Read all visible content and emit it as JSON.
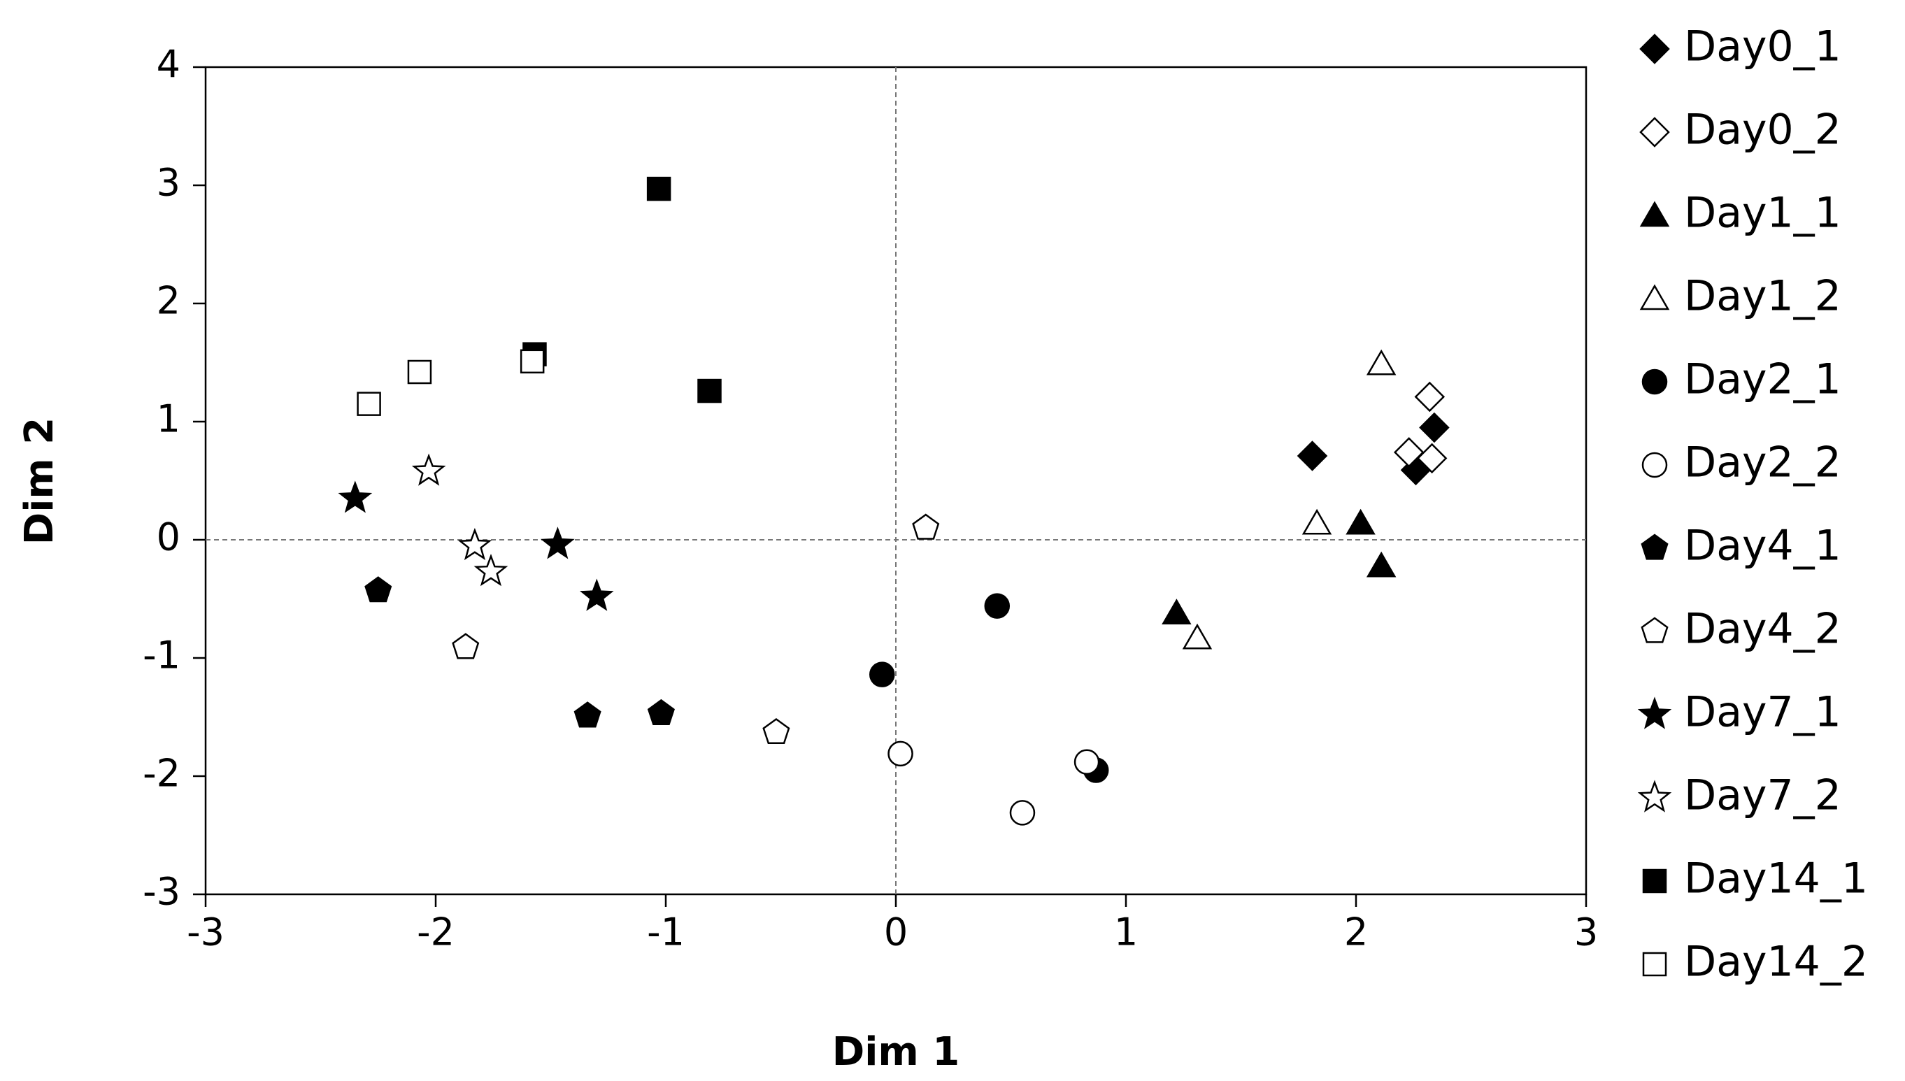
{
  "chart_data": {
    "type": "scatter",
    "x_label": "Dim 1",
    "y_label": "Dim 2",
    "xlim": [
      -3,
      3
    ],
    "ylim": [
      -3,
      4
    ],
    "xticks": [
      -3,
      -2,
      -1,
      0,
      1,
      2,
      3
    ],
    "yticks": [
      -3,
      -2,
      -1,
      0,
      1,
      2,
      3,
      4
    ],
    "zero_lines": true,
    "legend": "right",
    "series": [
      {
        "name": "Day0_1",
        "marker": "diamond",
        "filled": true,
        "color": "#000000",
        "x": [
          1.81,
          2.34,
          2.26
        ],
        "y": [
          0.71,
          0.95,
          0.59
        ]
      },
      {
        "name": "Day0_2",
        "marker": "diamond",
        "filled": false,
        "color": "#000000",
        "x": [
          2.32,
          2.23,
          2.33
        ],
        "y": [
          1.21,
          0.74,
          0.69
        ]
      },
      {
        "name": "Day1_1",
        "marker": "triangle",
        "filled": true,
        "color": "#000000",
        "x": [
          2.02,
          2.11,
          1.22
        ],
        "y": [
          0.14,
          -0.22,
          -0.62
        ]
      },
      {
        "name": "Day1_2",
        "marker": "triangle",
        "filled": false,
        "color": "#000000",
        "x": [
          2.11,
          1.83,
          1.31
        ],
        "y": [
          1.49,
          0.14,
          -0.83
        ]
      },
      {
        "name": "Day2_1",
        "marker": "circle",
        "filled": true,
        "color": "#000000",
        "x": [
          0.44,
          -0.06,
          0.87
        ],
        "y": [
          -0.56,
          -1.14,
          -1.95
        ]
      },
      {
        "name": "Day2_2",
        "marker": "circle",
        "filled": false,
        "color": "#000000",
        "x": [
          0.02,
          0.55,
          0.83
        ],
        "y": [
          -1.81,
          -2.31,
          -1.88
        ]
      },
      {
        "name": "Day4_1",
        "marker": "pentagon",
        "filled": true,
        "color": "#000000",
        "x": [
          -2.25,
          -1.34,
          -1.02
        ],
        "y": [
          -0.43,
          -1.49,
          -1.47
        ]
      },
      {
        "name": "Day4_2",
        "marker": "pentagon",
        "filled": false,
        "color": "#000000",
        "x": [
          0.13,
          -1.87,
          -0.52
        ],
        "y": [
          0.1,
          -0.91,
          -1.63
        ]
      },
      {
        "name": "Day7_1",
        "marker": "star",
        "filled": true,
        "color": "#000000",
        "x": [
          -2.35,
          -1.47,
          -1.3
        ],
        "y": [
          0.35,
          -0.04,
          -0.48
        ]
      },
      {
        "name": "Day7_2",
        "marker": "star",
        "filled": false,
        "color": "#000000",
        "x": [
          -2.03,
          -1.83,
          -1.76
        ],
        "y": [
          0.58,
          -0.05,
          -0.27
        ]
      },
      {
        "name": "Day14_1",
        "marker": "square",
        "filled": true,
        "color": "#000000",
        "x": [
          -1.03,
          -1.57,
          -0.81
        ],
        "y": [
          2.97,
          1.57,
          1.26
        ]
      },
      {
        "name": "Day14_2",
        "marker": "square",
        "filled": false,
        "color": "#000000",
        "x": [
          -2.29,
          -2.07,
          -1.58
        ],
        "y": [
          1.15,
          1.42,
          1.51
        ]
      }
    ]
  }
}
